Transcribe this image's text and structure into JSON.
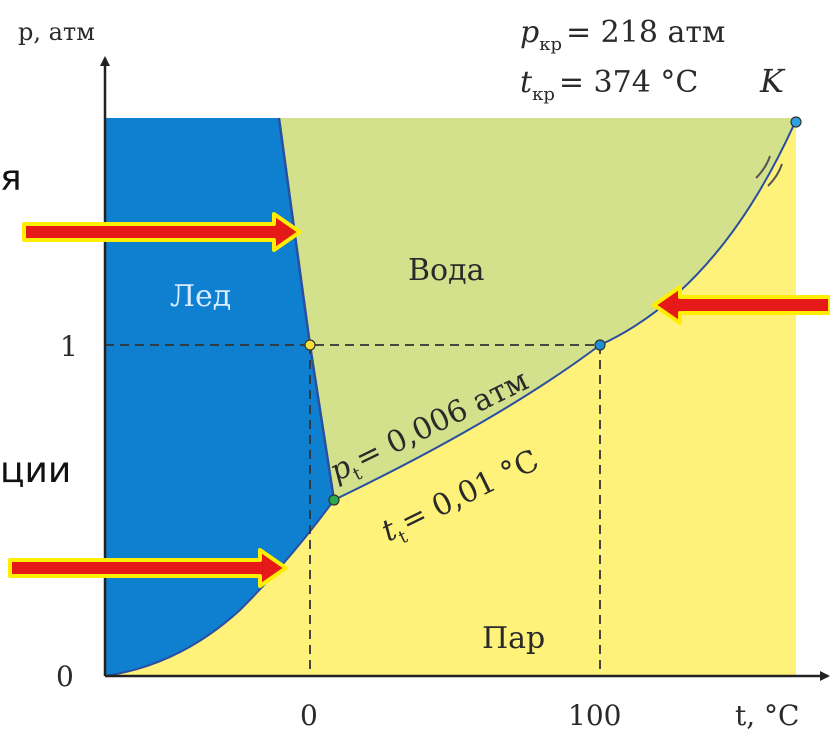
{
  "axes": {
    "y_label": "p, атм",
    "x_label": "t, °C",
    "origin_label": "0",
    "y_tick_1": "1",
    "x_tick_0": "0",
    "x_tick_100": "100"
  },
  "critical": {
    "p_line": "pₕₚ = 218 атм",
    "p_symbol": "p",
    "p_sub": "кр",
    "p_value": "= 218 атм",
    "t_symbol": "t",
    "t_sub": "кр",
    "t_value": "= 374 °C",
    "point_label": "K"
  },
  "regions": {
    "ice": "Лед",
    "water": "Вода",
    "vapor": "Пар"
  },
  "triple_point": {
    "p_symbol": "p",
    "p_sub": "t",
    "p_value": "= 0,006 атм",
    "t_symbol": "t",
    "t_sub": "t",
    "t_value": "= 0,01 °C"
  },
  "cropped_text": {
    "top": "я",
    "middle": "ции"
  },
  "colors": {
    "ice": "#0f7fd0",
    "water": "#d3e18d",
    "vapor": "#fff27a",
    "arrow_fill": "#e61919",
    "arrow_outline": "#ffee00"
  }
}
